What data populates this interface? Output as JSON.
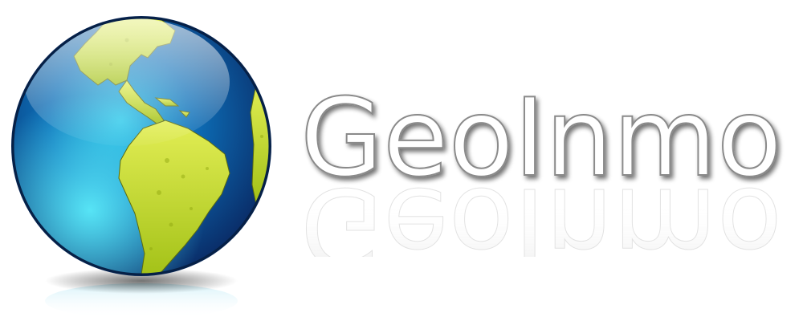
{
  "brand": {
    "name": "GeoInmo"
  },
  "icons": {
    "globe": "globe-americas-icon"
  },
  "colors": {
    "ocean_dark": "#0a2f6b",
    "ocean_mid": "#0d6fb8",
    "ocean_light": "#2ec4e8",
    "land": "#b9d21a",
    "land_light": "#e3ee55",
    "text_fill": "#ffffff",
    "text_stroke": "#8a8a8a",
    "shadow": "#555555",
    "background": "#ffffff"
  }
}
